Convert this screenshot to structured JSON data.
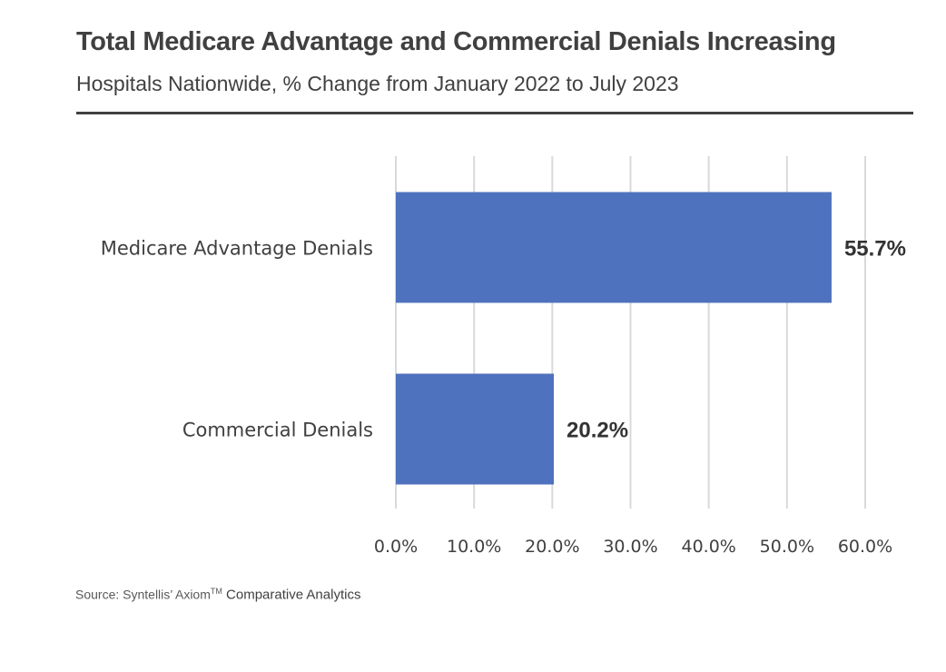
{
  "header": {
    "title": "Total Medicare Advantage and Commercial Denials Increasing",
    "subtitle": "Hospitals Nationwide, % Change from January 2022 to July 2023"
  },
  "source": {
    "prefix": "Source: Syntellis’ Axiom",
    "superscript": "TM",
    "suffix": " Comparative Analytics"
  },
  "chart_data": {
    "type": "bar",
    "orientation": "horizontal",
    "categories": [
      "Medicare Advantage Denials",
      "Commercial Denials"
    ],
    "values": [
      55.7,
      20.2
    ],
    "value_labels": [
      "55.7%",
      "20.2%"
    ],
    "x_ticks": [
      0,
      10,
      20,
      30,
      40,
      50,
      60
    ],
    "x_tick_labels": [
      "0.0%",
      "10.0%",
      "20.0%",
      "30.0%",
      "40.0%",
      "50.0%",
      "60.0%"
    ],
    "xlim": [
      0,
      60
    ],
    "grid": true,
    "bar_color": "#4F72BE",
    "grid_color": "#D9D9D9",
    "label_color": "#404040"
  }
}
